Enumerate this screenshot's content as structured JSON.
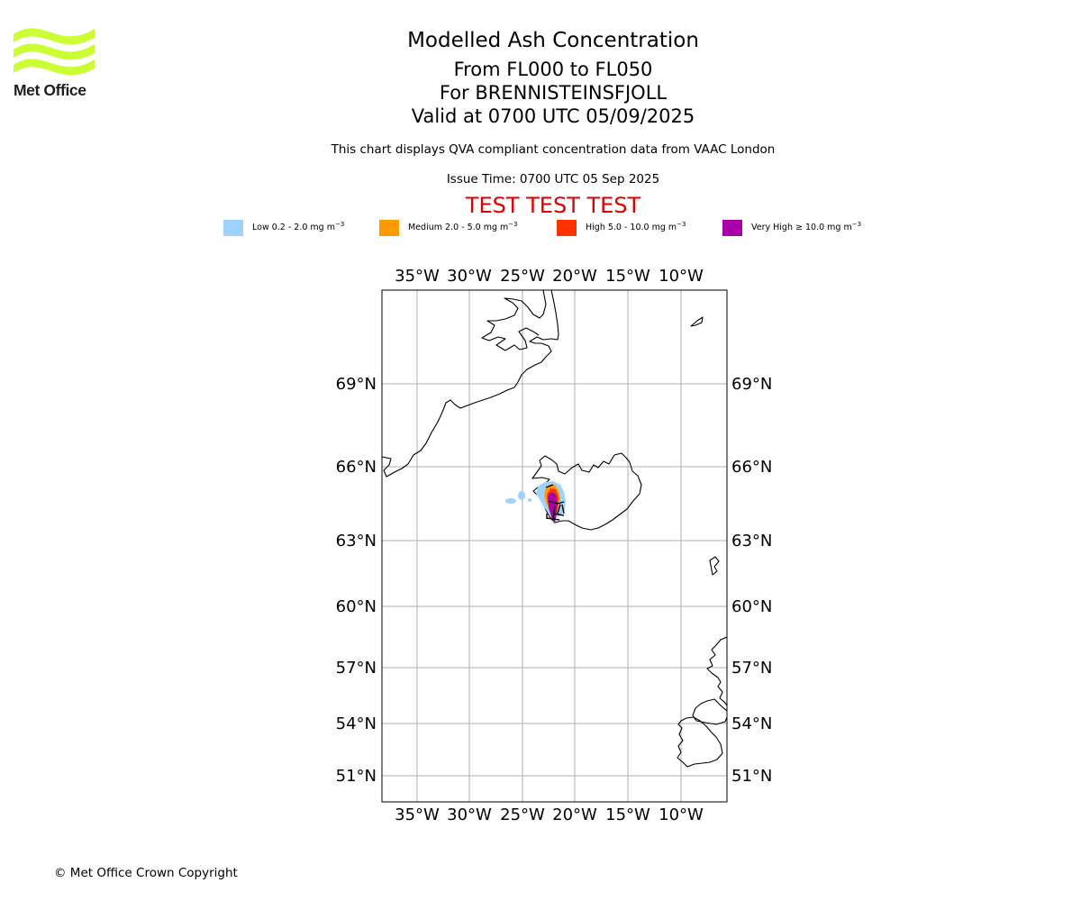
{
  "branding": {
    "logo_text": "Met Office",
    "brand_color": "#ccff33"
  },
  "header": {
    "title": "Modelled Ash Concentration",
    "levels": "From FL000 to FL050",
    "volcano": "For BRENNISTEINSFJOLL",
    "valid": "Valid at 0700 UTC 05/09/2025",
    "description": "This chart displays QVA compliant concentration data from VAAC London",
    "issue_time": "Issue Time: 0700 UTC 05 Sep 2025",
    "test_banner": "TEST TEST TEST"
  },
  "legend": [
    {
      "name": "low",
      "label": "Low 0.2 - 2.0 mg m",
      "unit_exponent": "−3",
      "color": "#a0d2ff"
    },
    {
      "name": "medium",
      "label": "Medium 2.0 - 5.0 mg m",
      "unit_exponent": "−3",
      "color": "#ff9900"
    },
    {
      "name": "high",
      "label": "High 5.0 - 10.0 mg m",
      "unit_exponent": "−3",
      "color": "#ff3300"
    },
    {
      "name": "very-high",
      "label": "Very High  ≥  10.0 mg m",
      "unit_exponent": "−3",
      "color": "#aa00aa"
    }
  ],
  "map": {
    "lon_ticks": [
      "35°W",
      "30°W",
      "25°W",
      "20°W",
      "15°W",
      "10°W"
    ],
    "lat_ticks": [
      "69°N",
      "66°N",
      "63°N",
      "60°N",
      "57°N",
      "54°N",
      "51°N"
    ],
    "gridline_color": "#b0b0b0"
  },
  "footer": {
    "copyright": "© Met Office Crown Copyright"
  }
}
